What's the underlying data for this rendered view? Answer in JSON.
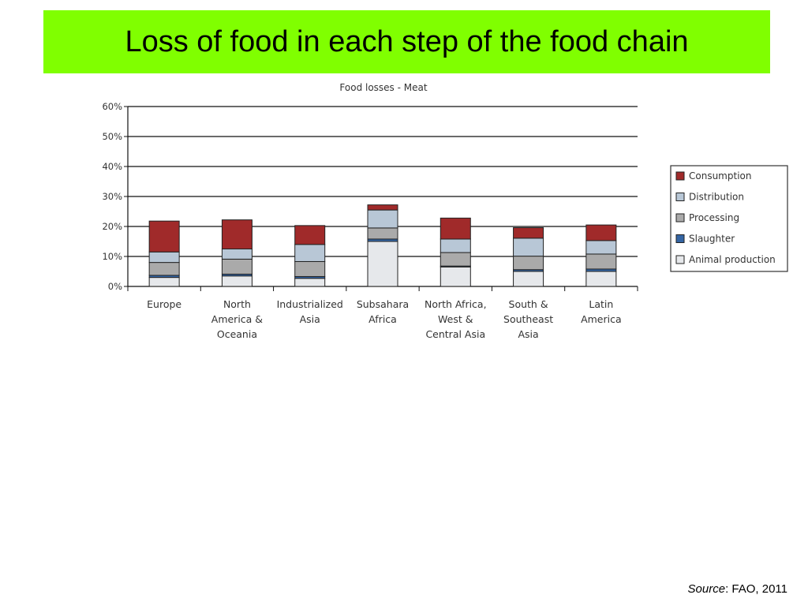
{
  "slide": {
    "title": "Loss of food in each step of the food chain",
    "source_label": "Source",
    "source_value": ": FAO, 2011"
  },
  "colors": {
    "title_banner": "#80ff00",
    "consumption": "#a02a2a",
    "distribution": "#b8c7d6",
    "processing": "#aaaaaa",
    "slaughter": "#3465a4",
    "animal_production": "#e6e8eb"
  },
  "chart_data": {
    "type": "bar",
    "stacked": true,
    "title": "Food losses - Meat",
    "xlabel": "",
    "ylabel": "",
    "ylim": [
      0,
      60
    ],
    "yticks": [
      "0%",
      "10%",
      "20%",
      "30%",
      "40%",
      "50%",
      "60%"
    ],
    "grid": true,
    "legend_position": "right",
    "categories": [
      [
        "Europe"
      ],
      [
        "North",
        "America &",
        "Oceania"
      ],
      [
        "Industrialized",
        "Asia"
      ],
      [
        "Subsahara",
        "Africa"
      ],
      [
        "North Africa,",
        "West &",
        "Central Asia"
      ],
      [
        "South &",
        "Southeast",
        "Asia"
      ],
      [
        "Latin",
        "America"
      ]
    ],
    "series": [
      {
        "name": "Animal production",
        "color": "#e6e8eb",
        "values": [
          3.0,
          3.5,
          2.7,
          15.0,
          6.5,
          5.0,
          5.0
        ]
      },
      {
        "name": "Slaughter",
        "color": "#3465a4",
        "values": [
          0.7,
          0.6,
          0.6,
          0.8,
          0.3,
          0.6,
          0.8
        ]
      },
      {
        "name": "Processing",
        "color": "#aaaaaa",
        "values": [
          4.3,
          5.0,
          5.0,
          3.7,
          4.5,
          4.5,
          5.0
        ]
      },
      {
        "name": "Distribution",
        "color": "#b8c7d6",
        "values": [
          3.5,
          3.4,
          5.7,
          6.0,
          4.5,
          6.0,
          4.5
        ]
      },
      {
        "name": "Consumption",
        "color": "#a02a2a",
        "values": [
          10.3,
          9.7,
          6.3,
          1.7,
          7.0,
          3.5,
          5.2
        ]
      }
    ],
    "legend_order": [
      "Consumption",
      "Distribution",
      "Processing",
      "Slaughter",
      "Animal production"
    ]
  }
}
